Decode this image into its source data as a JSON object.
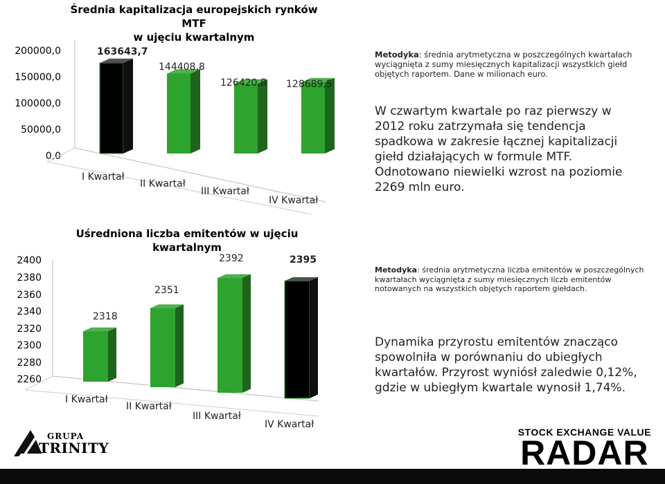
{
  "chart1": {
    "title_line1": "Średnia kapitalizacja europejskich rynków MTF",
    "title_line2": "w ujęciu kwartalnym",
    "y_ticks": [
      "200000,0",
      "150000,0",
      "100000,0",
      "50000,0",
      "0,0"
    ],
    "bar_labels": [
      "163643,7",
      "144408,8",
      "126420,8",
      "128689,5"
    ],
    "note_bold": "Metodyka",
    "note_text": ": średnia arytmetyczna w poszczególnych kwartałach wyciągnięta z sumy miesięcznych kapitalizacji wszystkich giełd objętych raportem. Dane w milionach euro.",
    "summary": "W czwartym kwartale po raz pierwszy w 2012 roku zatrzymała się tendencja spadkowa w zakresie łącznej kapitalizacji giełd działających w formule MTF. Odnotowano niewielki wzrost na poziomie 2269 mln euro."
  },
  "chart2": {
    "title": "Uśredniona liczba emitentów w ujęciu kwartalnym",
    "y_ticks": [
      "2400",
      "2380",
      "2360",
      "2340",
      "2320",
      "2300",
      "2280",
      "2260"
    ],
    "bar_labels": [
      "2318",
      "2351",
      "2392",
      "2395"
    ],
    "note_bold": "Metodyka",
    "note_text": ": średnia arytmetyczna liczba emitentów w poszczególnych kwartałach wyciągnięta z sumy miesięcznych liczb emitentów notowanych na wszystkich objętych raportem giełdach.",
    "summary": "Dynamika przyrostu emitentów znacząco spowolniła w porównaniu do ubiegłych kwartałów. Przyrost wyniósł zaledwie 0,12%, gdzie w ubiegłym kwartale wynosił 1,74%."
  },
  "chart_data": [
    {
      "type": "bar",
      "title": "Średnia kapitalizacja europejskich rynków MTF w ujęciu kwartalnym",
      "categories": [
        "I Kwartał",
        "II Kwartał",
        "III Kwartał",
        "IV Kwartał"
      ],
      "values": [
        163643.7,
        144408.8,
        126420.8,
        128689.5
      ],
      "ylim": [
        0,
        200000
      ],
      "highlight_index": 0,
      "colors": {
        "bar": "#2ea32e",
        "highlight": "#000000"
      }
    },
    {
      "type": "bar",
      "title": "Uśredniona liczba emitentów w ujęciu kwartalnym",
      "categories": [
        "I Kwartał",
        "II Kwartał",
        "III Kwartał",
        "IV Kwartał"
      ],
      "values": [
        2318,
        2351,
        2392,
        2395
      ],
      "ylim": [
        2260,
        2400
      ],
      "highlight_index": 3,
      "colors": {
        "bar": "#2ea32e",
        "highlight": "#000000"
      }
    }
  ],
  "logo_left": {
    "line1": "GRUPA",
    "line2": "TRINITY"
  },
  "logo_right": {
    "line1": "STOCK EXCHANGE VALUE",
    "line2": "RADAR"
  }
}
